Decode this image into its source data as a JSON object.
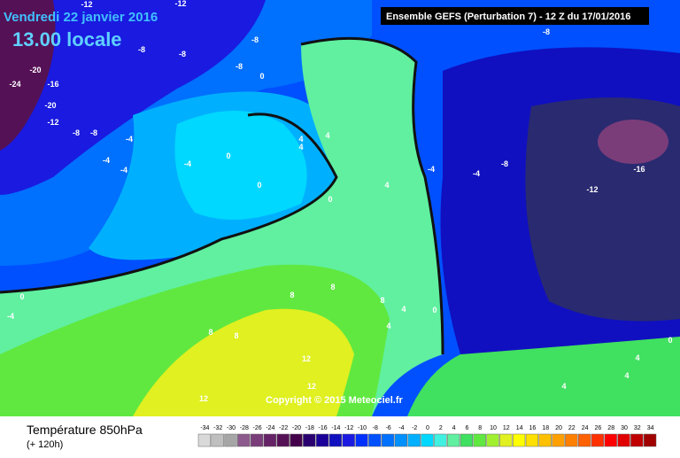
{
  "header": {
    "date": "Vendredi 22 janvier 2016",
    "time": "13.00 locale",
    "run": "Ensemble GEFS  (Perturbation 7)  -  12 Z du 17/01/2016"
  },
  "copyright": "Copyright © 2015 Meteociel.fr",
  "footer": {
    "title": "Température 850hPa",
    "lead": "(+ 120h)"
  },
  "legend": {
    "values": [
      -34,
      -32,
      -30,
      -28,
      -26,
      -24,
      -22,
      -20,
      -18,
      -16,
      -14,
      -12,
      -10,
      -8,
      -6,
      -4,
      -2,
      0,
      2,
      4,
      6,
      8,
      10,
      12,
      14,
      16,
      18,
      20,
      22,
      24,
      26,
      28,
      30,
      32,
      34
    ],
    "colors": [
      "#d9d9d9",
      "#bfbfbf",
      "#a6a6a6",
      "#8c5a8c",
      "#7a3d7a",
      "#662266",
      "#551155",
      "#44004a",
      "#2a0070",
      "#1a0099",
      "#1010c0",
      "#1a1ae0",
      "#0030ff",
      "#0050ff",
      "#0070ff",
      "#0090ff",
      "#00b0ff",
      "#00d8ff",
      "#40f0e0",
      "#60f0a0",
      "#40e060",
      "#60e840",
      "#a0f030",
      "#e0f020",
      "#ffff00",
      "#ffe000",
      "#ffc000",
      "#ffa000",
      "#ff8000",
      "#ff6000",
      "#ff3000",
      "#ff0000",
      "#e00000",
      "#c00000",
      "#a00000"
    ]
  },
  "map_labels": [
    "-12",
    "-12",
    "-8",
    "-8",
    "-8",
    "-8",
    "0",
    "-8",
    "-20",
    "-24",
    "-16",
    "-20",
    "-12",
    "-8",
    "-8",
    "-4",
    "-4",
    "-4",
    "-4",
    "0",
    "0",
    "4",
    "4",
    "4",
    "4",
    "0",
    "-4",
    "-4",
    "-8",
    "-16",
    "-12",
    "0",
    "-4",
    "8",
    "8",
    "8",
    "4",
    "0",
    "4",
    "8",
    "8",
    "12",
    "12",
    "12",
    "4",
    "4",
    "4",
    "0"
  ]
}
